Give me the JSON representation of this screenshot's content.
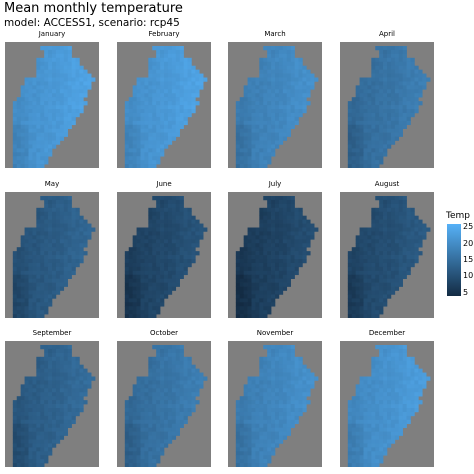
{
  "title": "Mean monthly temperature",
  "subtitle": "model: ACCESS1, scenario: rcp45",
  "chart_data": {
    "type": "heatmap",
    "title": "Mean monthly temperature",
    "subtitle": "model: ACCESS1, scenario: rcp45",
    "panels": [
      "January",
      "February",
      "March",
      "April",
      "May",
      "June",
      "July",
      "August",
      "September",
      "October",
      "November",
      "December"
    ],
    "panel_mean_temp": [
      22,
      22,
      19,
      16,
      12,
      9,
      8,
      10,
      13,
      16,
      19,
      21
    ],
    "legend": {
      "title": "Temp",
      "ticks": [
        5,
        10,
        15,
        20,
        25
      ],
      "range": [
        4,
        26
      ],
      "low_color": "#132b43",
      "high_color": "#56b1f7",
      "placement": "right"
    },
    "na_color": "#7f7f7f"
  }
}
